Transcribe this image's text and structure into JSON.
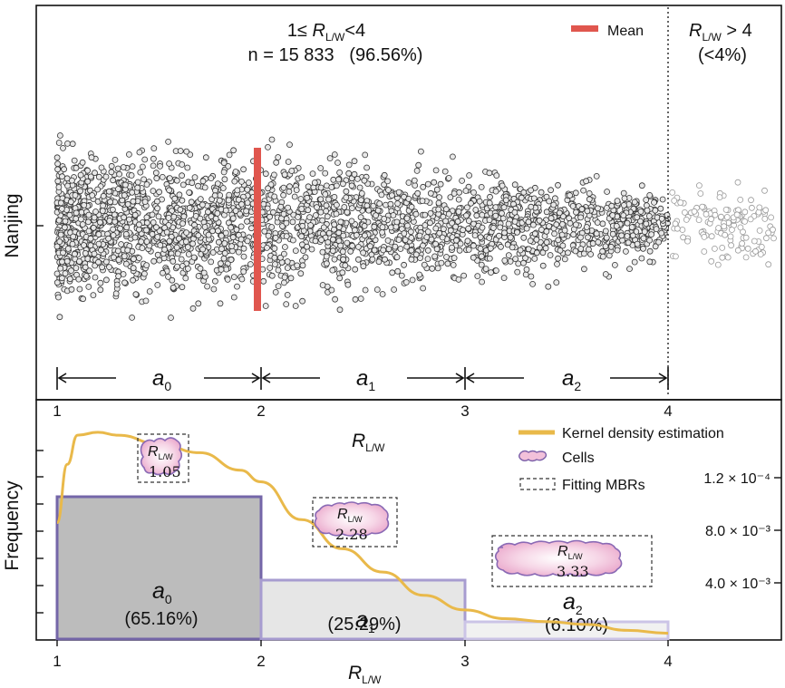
{
  "chart_data": [
    {
      "type": "scatter",
      "panel": "top",
      "ylabel": "Nanjing",
      "xlim": [
        1,
        4.5
      ],
      "region_main": {
        "range": [
          1,
          4
        ],
        "label": "1≤ Rₗₐ<4",
        "label_prefix": "1≤ ",
        "label_var": "R",
        "label_sub": "L/W",
        "label_suffix": "<4",
        "count_text": "n = 15 833   (96.56%)",
        "n": 15833,
        "share_percent": 96.56
      },
      "region_tail": {
        "label_var": "R",
        "label_sub": "L/W",
        "label_suffix": " > 4",
        "share_text": "(<4%)"
      },
      "mean_label": "Mean",
      "mean_x": 2.0,
      "mean_color": "#e0564e",
      "intervals": [
        {
          "name": "a",
          "sub": "0",
          "from": 1,
          "to": 2
        },
        {
          "name": "a",
          "sub": "1",
          "from": 2,
          "to": 3
        },
        {
          "name": "a",
          "sub": "2",
          "from": 3,
          "to": 4
        }
      ],
      "x_ticks": [
        "1",
        "2",
        "3",
        "4"
      ],
      "x_title_var": "R",
      "x_title_sub": "L/W"
    },
    {
      "type": "bar",
      "panel": "bottom",
      "ylabel": "Frequency",
      "xlabel_var": "R",
      "xlabel_sub": "L/W",
      "x_ticks": [
        "1",
        "2",
        "3",
        "4"
      ],
      "bars": [
        {
          "from": 1,
          "to": 2,
          "value": 65.16,
          "label_var": "a",
          "label_sub": "0",
          "pct_text": "(65.16%)",
          "fill": "#bcbcbc",
          "stroke": "#7466a8"
        },
        {
          "from": 2,
          "to": 3,
          "value": 25.29,
          "label_var": "a",
          "label_sub": "1",
          "pct_text": "(25.29%)",
          "fill": "#e6e6e6",
          "stroke": "#a79cd0"
        },
        {
          "from": 3,
          "to": 4,
          "value": 6.1,
          "label_var": "a",
          "label_sub": "2",
          "pct_text": "(6.10%)",
          "fill": "#f1f1f1",
          "stroke": "#cbc4e6"
        }
      ],
      "ylim": [
        0,
        80
      ],
      "kde": {
        "name": "Kernel density estimation",
        "color": "#e9b94a",
        "x": [
          1.0,
          1.05,
          1.1,
          1.2,
          1.3,
          1.5,
          1.7,
          1.9,
          2.0,
          2.2,
          2.4,
          2.6,
          2.8,
          3.0,
          3.2,
          3.4,
          3.6,
          3.8,
          4.0
        ],
        "y": [
          40,
          60,
          70,
          71,
          70,
          67,
          64,
          58,
          54,
          41,
          31,
          23,
          15,
          10,
          7,
          6,
          5,
          3,
          2
        ]
      },
      "right_axis_labels": [
        "1.2 × 10⁻⁴",
        "8.0 × 10⁻³",
        "4.0 × 10⁻³"
      ],
      "legend": [
        {
          "kind": "line",
          "label": "Kernel density estimation",
          "color": "#e9b94a"
        },
        {
          "kind": "cell",
          "label": "Cells"
        },
        {
          "kind": "dashed",
          "label": "Fitting MBRs"
        }
      ],
      "cell_insets": [
        {
          "var": "R",
          "sub": "L/W",
          "value": "1.05"
        },
        {
          "var": "R",
          "sub": "L/W",
          "value": "2.28"
        },
        {
          "var": "R",
          "sub": "L/W",
          "value": "3.33"
        }
      ]
    }
  ]
}
